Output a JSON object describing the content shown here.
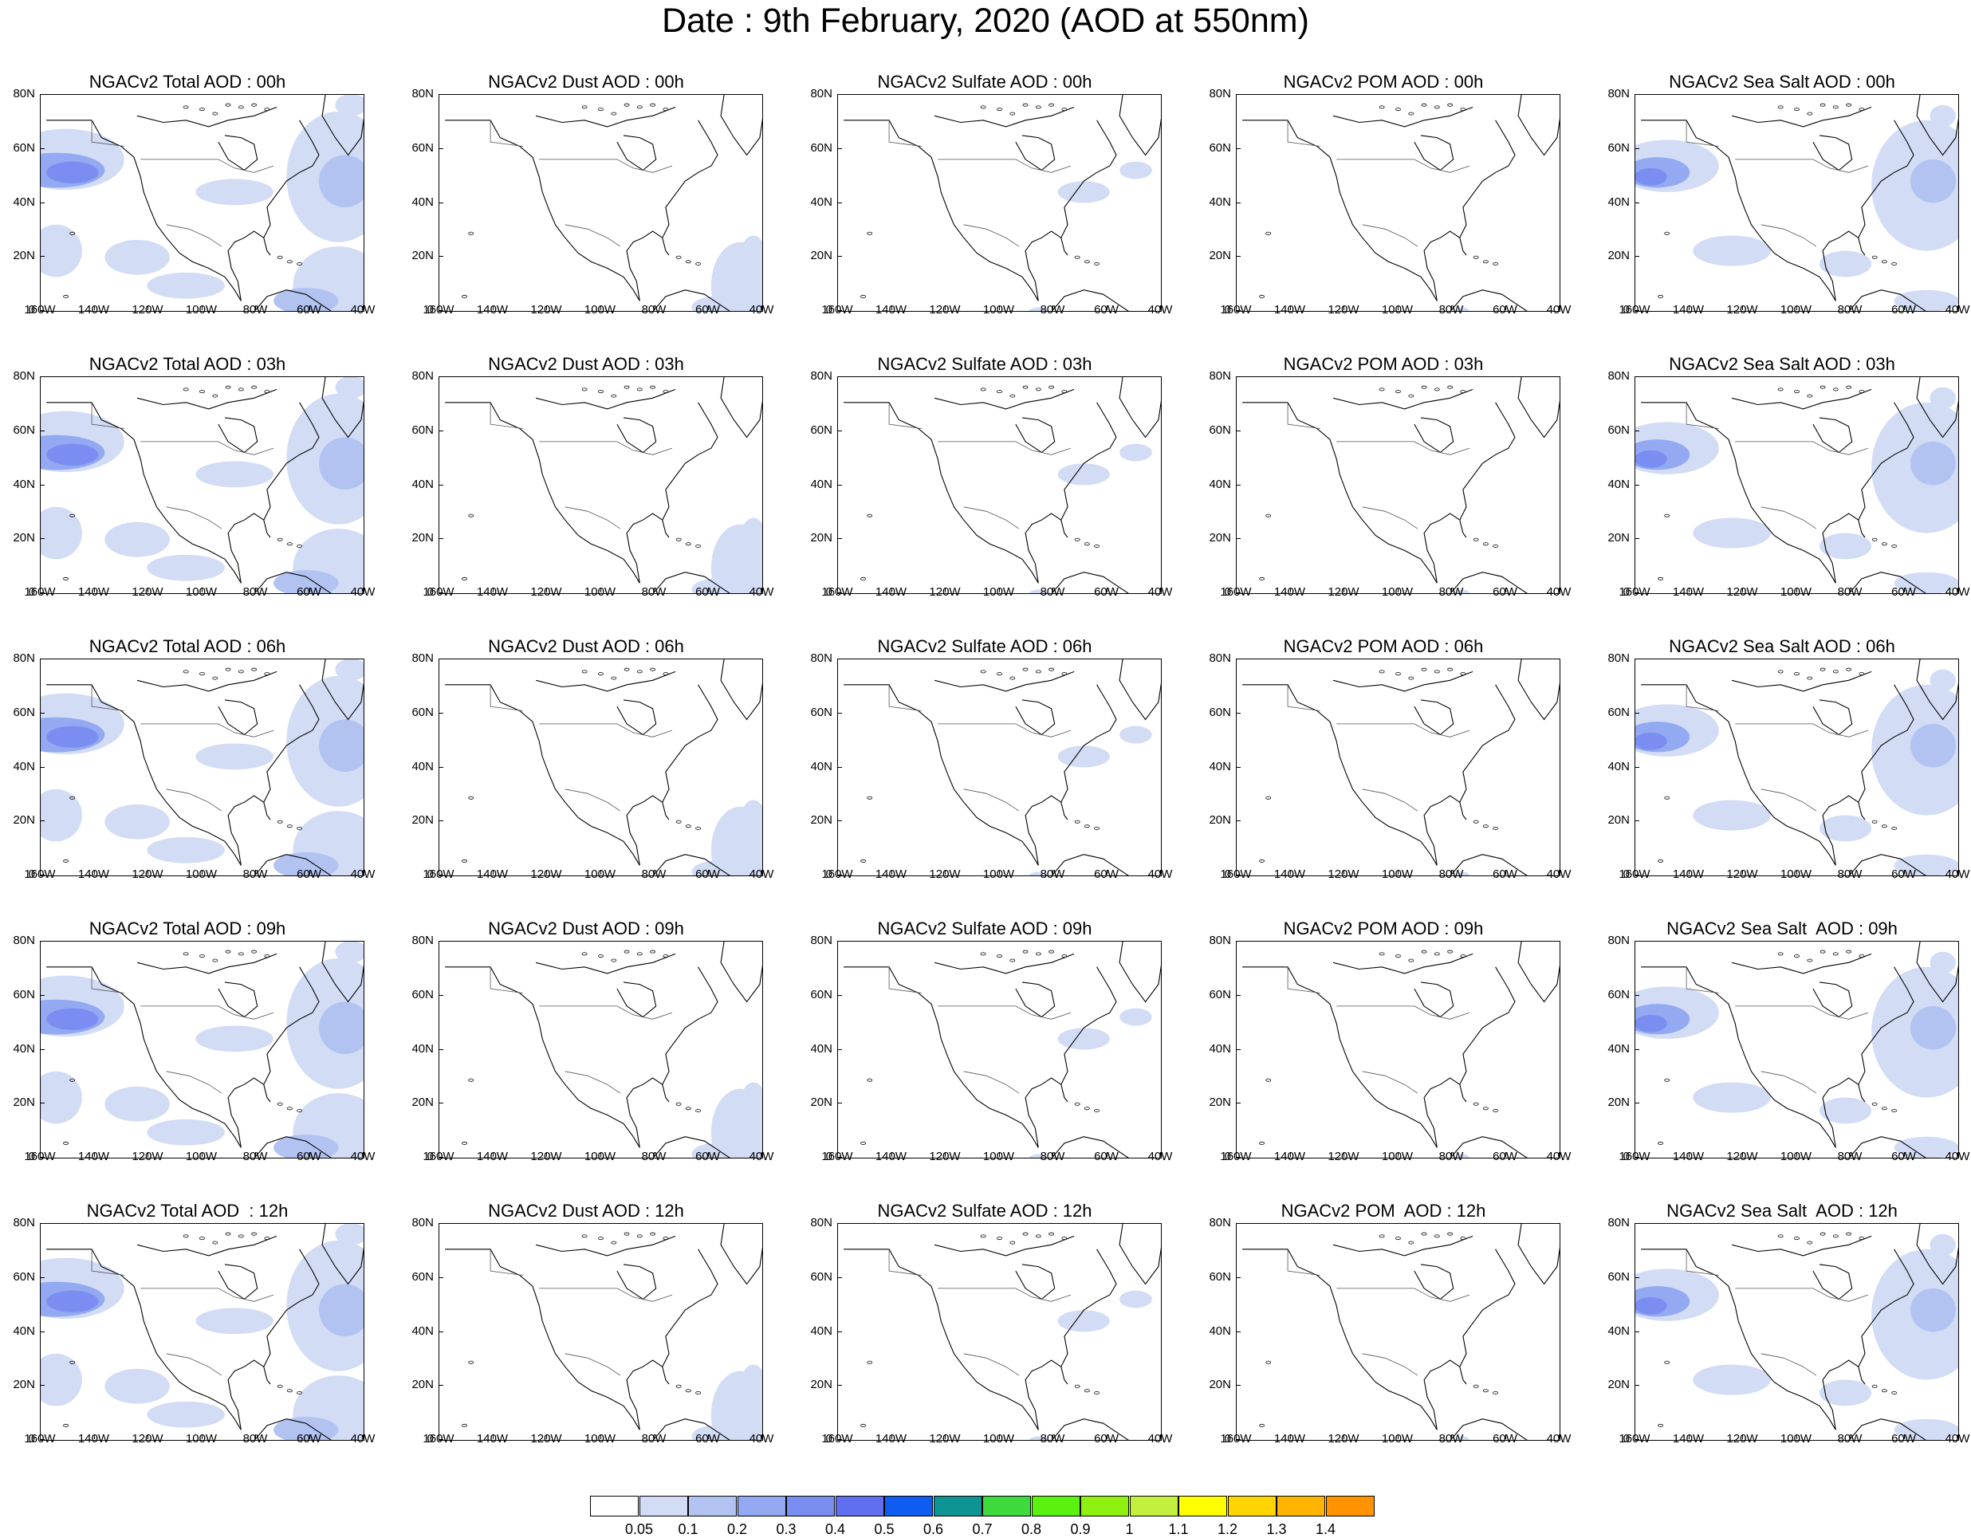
{
  "title": "Date : 9th February, 2020 (AOD at 550nm)",
  "y_ticks": [
    "80N",
    "60N",
    "40N",
    "20N",
    "0"
  ],
  "x_ticks": [
    "160W",
    "140W",
    "120W",
    "100W",
    "80W",
    "60W",
    "40W"
  ],
  "colorbar": {
    "colors": [
      "#ffffff",
      "#d2dcf5",
      "#b2c3f2",
      "#93a9f2",
      "#7a8ef2",
      "#5f6ff0",
      "#0f5cf0",
      "#0f9494",
      "#3dd93d",
      "#5af00f",
      "#8ef00f",
      "#c2f03c",
      "#ffff00",
      "#ffd400",
      "#ffb400",
      "#ff9400",
      "#ff6a00",
      "#ff2a10"
    ],
    "labels": [
      "0.05",
      "0.1",
      "0.2",
      "0.3",
      "0.4",
      "0.5",
      "0.6",
      "0.7",
      "0.8",
      "0.9",
      "1",
      "1.1",
      "1.2",
      "1.3",
      "1.4"
    ]
  },
  "panels": [
    {
      "title": "NGACv2 Total AOD : 00h",
      "species": "total"
    },
    {
      "title": "NGACv2 Dust AOD : 00h",
      "species": "dust"
    },
    {
      "title": "NGACv2 Sulfate AOD : 00h",
      "species": "sulfate"
    },
    {
      "title": "NGACv2 POM AOD : 00h",
      "species": "pom"
    },
    {
      "title": "NGACv2 Sea Salt AOD : 00h",
      "species": "seasalt"
    },
    {
      "title": "NGACv2 Total AOD : 03h",
      "species": "total"
    },
    {
      "title": "NGACv2 Dust AOD : 03h",
      "species": "dust"
    },
    {
      "title": "NGACv2 Sulfate AOD : 03h",
      "species": "sulfate"
    },
    {
      "title": "NGACv2 POM AOD : 03h",
      "species": "pom"
    },
    {
      "title": "NGACv2 Sea Salt AOD : 03h",
      "species": "seasalt"
    },
    {
      "title": "NGACv2 Total AOD : 06h",
      "species": "total"
    },
    {
      "title": "NGACv2 Dust AOD : 06h",
      "species": "dust"
    },
    {
      "title": "NGACv2 Sulfate AOD : 06h",
      "species": "sulfate"
    },
    {
      "title": "NGACv2 POM AOD : 06h",
      "species": "pom"
    },
    {
      "title": "NGACv2 Sea Salt AOD : 06h",
      "species": "seasalt"
    },
    {
      "title": "NGACv2 Total AOD : 09h",
      "species": "total"
    },
    {
      "title": "NGACv2 Dust AOD : 09h",
      "species": "dust"
    },
    {
      "title": "NGACv2 Sulfate AOD : 09h",
      "species": "sulfate"
    },
    {
      "title": "NGACv2 POM AOD : 09h",
      "species": "pom"
    },
    {
      "title": "NGACv2 Sea Salt  AOD : 09h",
      "species": "seasalt"
    },
    {
      "title": "NGACv2 Total AOD  : 12h",
      "species": "total"
    },
    {
      "title": "NGACv2 Dust AOD : 12h",
      "species": "dust"
    },
    {
      "title": "NGACv2 Sulfate AOD : 12h",
      "species": "sulfate"
    },
    {
      "title": "NGACv2 POM  AOD : 12h",
      "species": "pom"
    },
    {
      "title": "NGACv2 Sea Salt  AOD : 12h",
      "species": "seasalt"
    }
  ]
}
